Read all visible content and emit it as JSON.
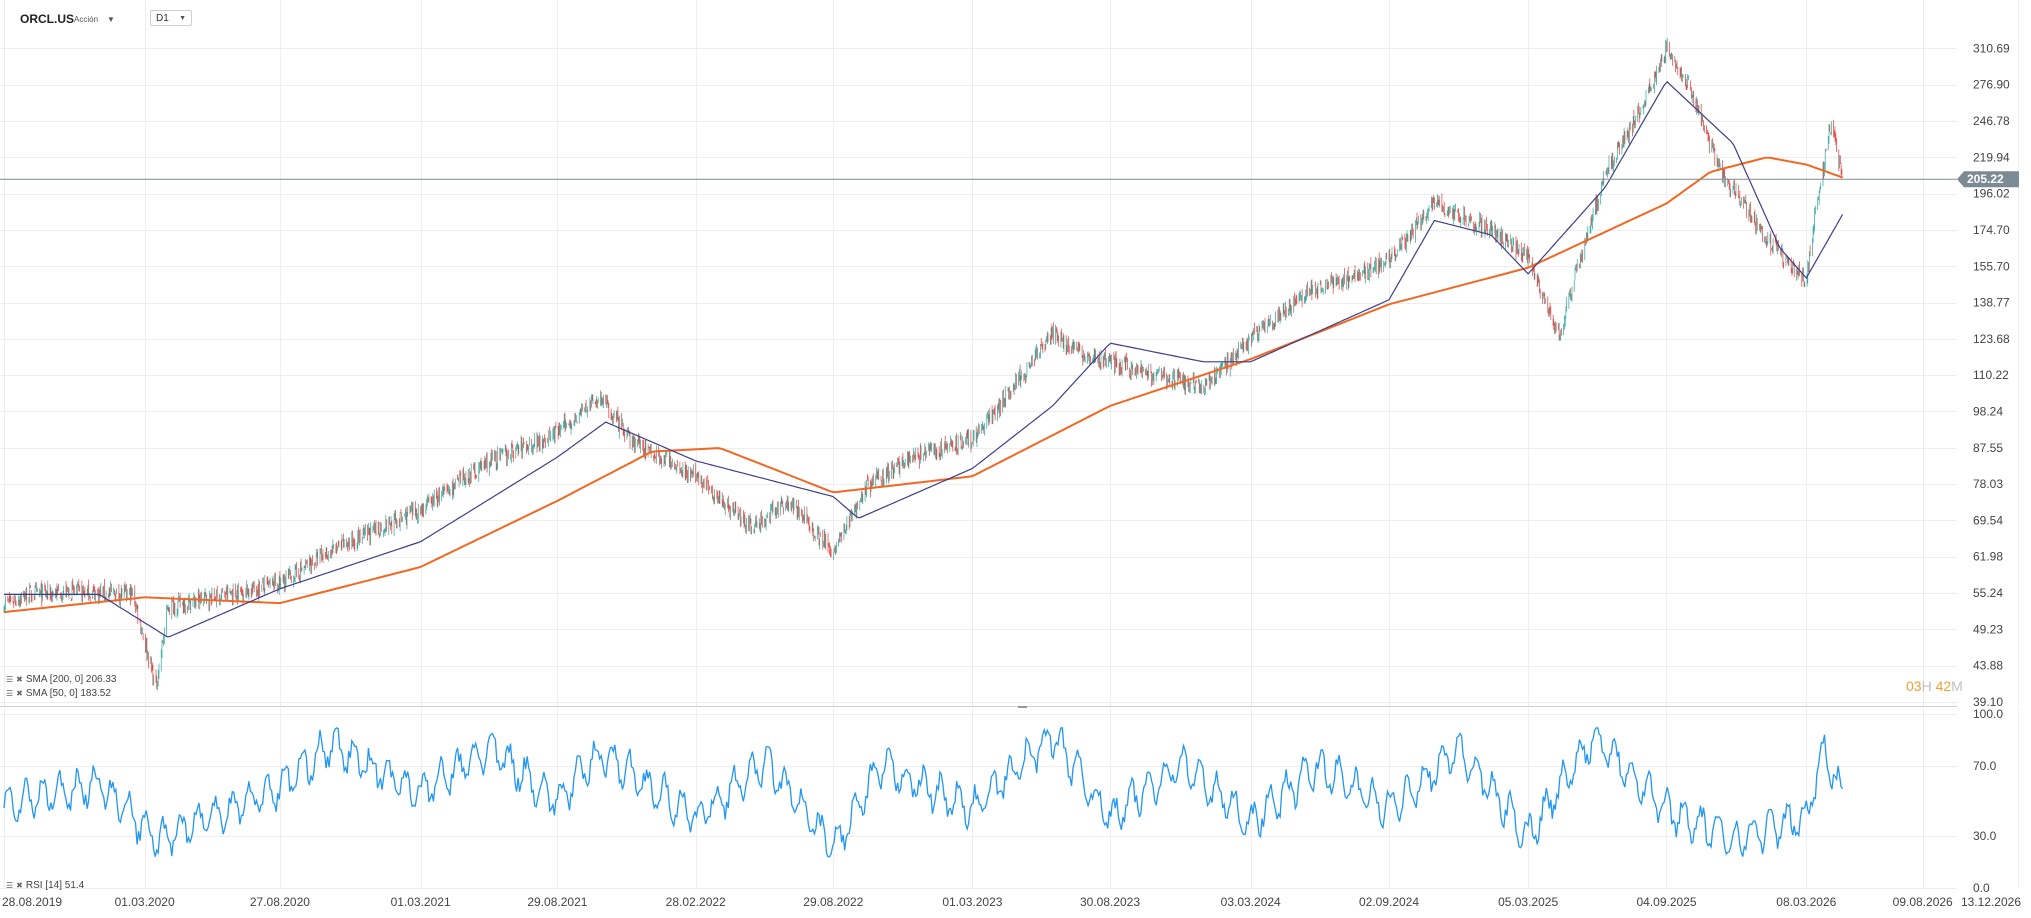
{
  "header": {
    "symbol": "ORCL.US",
    "security_type": "Acción",
    "timeframe": "D1"
  },
  "indicator_legends": {
    "sma200": "SMA [200, 0] 206.33",
    "sma50": "SMA [50, 0] 183.52",
    "rsi": "RSI [14] 51.4"
  },
  "session_timer": {
    "hours": "03",
    "hours_unit": "H",
    "minutes": "42",
    "minutes_unit": "M"
  },
  "colors": {
    "up_candle": "#26a69a",
    "down_candle": "#e53935",
    "sma200": "#f26722",
    "sma50": "#3b3f8c",
    "rsi": "#2196f3",
    "last_price_tag": "#7b8a93",
    "grid": "#eeeeee"
  },
  "chart_data": [
    {
      "type": "candlestick",
      "title": "ORCL.US",
      "yscale": "log",
      "ylim": [
        39.1,
        340.0
      ],
      "y_ticks": [
        "310.69",
        "276.90",
        "246.78",
        "219.94",
        "196.02",
        "174.70",
        "155.70",
        "138.77",
        "123.68",
        "110.22",
        "98.24",
        "87.55",
        "78.03",
        "69.54",
        "61.98",
        "55.24",
        "49.23",
        "43.88",
        "39.10"
      ],
      "x_ticks": [
        "28.08.2019",
        "01.03.2020",
        "27.08.2020",
        "01.03.2021",
        "29.08.2021",
        "28.02.2022",
        "29.08.2022",
        "01.03.2023",
        "30.08.2023",
        "03.03.2024",
        "02.09.2024",
        "05.03.2025",
        "04.09.2025",
        "08.03.2026",
        "09.08.2026",
        "13.12.2026"
      ],
      "last_price": "205.22",
      "series": [
        {
          "kind": "close",
          "x": [
            "28.08.2019",
            "01.10.2019",
            "01.12.2019",
            "15.02.2020",
            "16.03.2020",
            "01.04.2020",
            "01.06.2020",
            "27.08.2020",
            "01.11.2020",
            "01.03.2021",
            "01.06.2021",
            "29.08.2021",
            "25.10.2021",
            "01.12.2021",
            "28.02.2022",
            "15.05.2022",
            "01.07.2022",
            "29.08.2022",
            "10.10.2022",
            "01.12.2022",
            "01.03.2023",
            "15.06.2023",
            "15.08.2023",
            "30.08.2023",
            "01.11.2023",
            "01.01.2024",
            "03.03.2024",
            "15.05.2024",
            "02.09.2024",
            "01.11.2024",
            "15.01.2025",
            "05.03.2025",
            "15.04.2025",
            "15.06.2025",
            "01.08.2025",
            "04.09.2025",
            "01.10.2025",
            "15.11.2025",
            "15.01.2026",
            "08.03.2026",
            "20.03.2026",
            "10.04.2026",
            "25.04.2026"
          ],
          "values": [
            53.5,
            55.0,
            55.5,
            55.0,
            41.0,
            53.0,
            54.5,
            57.0,
            63.0,
            72.0,
            84.0,
            92.0,
            103.0,
            90.0,
            80.0,
            68.0,
            74.0,
            63.0,
            77.0,
            84.0,
            90.0,
            125.0,
            115.0,
            115.0,
            110.0,
            106.0,
            124.0,
            143.0,
            158.0,
            190.0,
            175.0,
            160.0,
            125.0,
            210.0,
            255.0,
            310.0,
            280.0,
            210.0,
            170.0,
            148.0,
            185.0,
            245.0,
            205.22
          ]
        },
        {
          "name": "SMA [200, 0]",
          "x": [
            "28.08.2019",
            "01.03.2020",
            "27.08.2020",
            "01.03.2021",
            "29.08.2021",
            "01.01.2022",
            "01.04.2022",
            "29.08.2022",
            "01.03.2023",
            "30.08.2023",
            "03.03.2024",
            "02.09.2024",
            "05.03.2025",
            "04.09.2025",
            "01.11.2025",
            "15.01.2026",
            "08.03.2026",
            "25.04.2026"
          ],
          "values": [
            52.0,
            54.5,
            53.5,
            60.0,
            74.0,
            86.5,
            87.5,
            76.0,
            80.0,
            100.0,
            116.0,
            138.0,
            155.0,
            190.0,
            210.0,
            220.0,
            215.0,
            206.33
          ]
        },
        {
          "name": "SMA [50, 0]",
          "x": [
            "28.08.2019",
            "01.01.2020",
            "01.04.2020",
            "27.08.2020",
            "01.03.2021",
            "29.08.2021",
            "01.11.2021",
            "28.02.2022",
            "29.08.2022",
            "01.10.2022",
            "01.03.2023",
            "15.06.2023",
            "30.08.2023",
            "01.01.2024",
            "03.03.2024",
            "02.09.2024",
            "01.11.2024",
            "15.01.2025",
            "05.03.2025",
            "15.06.2025",
            "04.09.2025",
            "01.12.2025",
            "01.02.2026",
            "08.03.2026",
            "25.04.2026"
          ],
          "values": [
            55.0,
            55.0,
            48.0,
            56.0,
            65.0,
            85.0,
            95.0,
            84.0,
            75.0,
            70.0,
            82.0,
            100.0,
            122.0,
            115.0,
            115.0,
            140.0,
            180.0,
            172.0,
            152.0,
            200.0,
            280.0,
            230.0,
            165.0,
            150.0,
            183.52
          ]
        }
      ]
    },
    {
      "type": "line",
      "title": "RSI [14]",
      "ylim": [
        0.0,
        100.0
      ],
      "y_ticks": [
        "100.0",
        "70.0",
        "30.0",
        "0.0"
      ],
      "series": [
        {
          "name": "RSI [14]",
          "x": [
            "28.08.2019",
            "01.01.2020",
            "16.03.2020",
            "27.08.2020",
            "01.11.2020",
            "01.03.2021",
            "01.06.2021",
            "29.08.2021",
            "25.10.2021",
            "28.02.2022",
            "01.06.2022",
            "29.08.2022",
            "01.11.2022",
            "01.03.2023",
            "15.06.2023",
            "30.08.2023",
            "01.12.2023",
            "03.03.2024",
            "01.06.2024",
            "02.09.2024",
            "01.12.2024",
            "05.03.2025",
            "01.06.2025",
            "04.09.2025",
            "01.12.2025",
            "08.03.2026",
            "01.04.2026",
            "25.04.2026"
          ],
          "values": [
            48,
            60,
            28,
            58,
            82,
            55,
            80,
            50,
            78,
            40,
            72,
            22,
            70,
            45,
            88,
            40,
            72,
            38,
            70,
            45,
            80,
            30,
            88,
            45,
            28,
            40,
            82,
            51.4
          ]
        }
      ]
    }
  ]
}
